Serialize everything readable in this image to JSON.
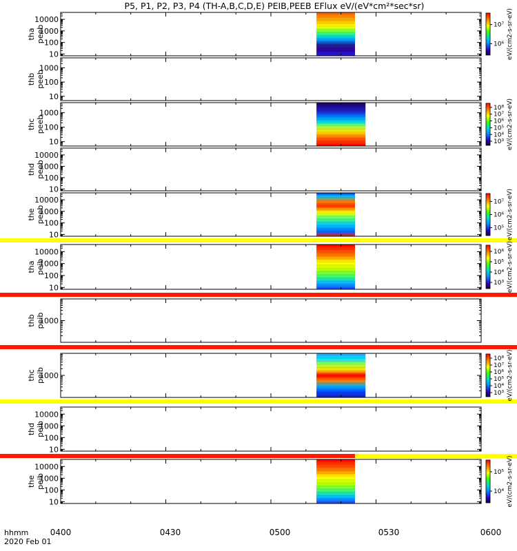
{
  "title": "P5, P1, P2, P3, P4 (TH-A,B,C,D,E) PEIB,PEEB EFlux eV/(eV*cm²*sec*sr)",
  "footer": {
    "time_label": "hhmm",
    "date_label": "2020 Feb 01"
  },
  "chart_data": {
    "type": "heatmap",
    "x_ticks": [
      "0400",
      "0430",
      "0500",
      "0530",
      "0600"
    ],
    "xlim": [
      "04:00",
      "06:00"
    ],
    "y_scale": "log",
    "color_scale": "log",
    "panels": [
      {
        "id": "tha-peeb",
        "ylabel": [
          "tha",
          "peeb"
        ],
        "yticks": [
          "10",
          "100",
          "1000",
          "10000"
        ],
        "ylim": [
          7,
          40000
        ],
        "data_interval": [
          "05:13",
          "05:24"
        ],
        "flag_bar": null,
        "colorbar": {
          "ticks": [
            "10⁶",
            "10⁷"
          ],
          "label": "eV/(cm2-s-sr-eV)"
        }
      },
      {
        "id": "thb-peeb",
        "ylabel": [
          "thb",
          "peeb"
        ],
        "yticks": [
          "10",
          "100",
          "1000"
        ],
        "ylim": [
          5,
          5000
        ],
        "data_interval": null,
        "flag_bar": null,
        "colorbar": null
      },
      {
        "id": "thc-peeb",
        "ylabel": [
          "thc",
          "peeb"
        ],
        "yticks": [
          "10",
          "100",
          "1000"
        ],
        "ylim": [
          5,
          5000
        ],
        "data_interval": [
          "05:13",
          "05:27"
        ],
        "flag_bar": null,
        "colorbar": {
          "ticks": [
            "10³",
            "10⁴",
            "10⁵",
            "10⁶",
            "10⁷",
            "10⁸"
          ],
          "label": "eV/(cm2-s-sr-eV)"
        }
      },
      {
        "id": "thd-peeb",
        "ylabel": [
          "thd",
          "peeb"
        ],
        "yticks": [
          "10",
          "100",
          "1000",
          "10000"
        ],
        "ylim": [
          7,
          40000
        ],
        "data_interval": null,
        "flag_bar": null,
        "colorbar": null
      },
      {
        "id": "the-peeb",
        "ylabel": [
          "the",
          "peeb"
        ],
        "yticks": [
          "10",
          "100",
          "1000",
          "10000"
        ],
        "ylim": [
          7,
          40000
        ],
        "data_interval": [
          "05:13",
          "05:24"
        ],
        "flag_bar": "yellow",
        "colorbar": {
          "ticks": [
            "10⁵",
            "10⁶",
            "10⁷"
          ],
          "label": "eV/(cm2-s-sr-eV)"
        }
      },
      {
        "id": "tha-peib",
        "ylabel": [
          "tha",
          "peib"
        ],
        "yticks": [
          "10",
          "100",
          "1000",
          "10000"
        ],
        "ylim": [
          7,
          40000
        ],
        "data_interval": [
          "05:13",
          "05:24"
        ],
        "flag_bar": "red",
        "colorbar": {
          "ticks": [
            "10³",
            "10⁴",
            "10⁵",
            "10⁶"
          ],
          "label": "eV/(cm2-s-sr-eV)"
        }
      },
      {
        "id": "thb-peib",
        "ylabel": [
          "thb",
          "peib"
        ],
        "yticks": [
          "1000"
        ],
        "ylim": [
          100,
          10000
        ],
        "data_interval": null,
        "flag_bar": "red",
        "colorbar": null
      },
      {
        "id": "thc-peib",
        "ylabel": [
          "thc",
          "peib"
        ],
        "yticks": [
          "1000"
        ],
        "ylim": [
          100,
          10000
        ],
        "data_interval": [
          "05:13",
          "05:27"
        ],
        "flag_bar": "yellow",
        "colorbar": {
          "ticks": [
            "10³",
            "10⁴",
            "10⁵",
            "10⁶",
            "10⁷",
            "10⁸"
          ],
          "label": "eV/(cm2-s-sr-eV)"
        }
      },
      {
        "id": "thd-peib",
        "ylabel": [
          "thd",
          "peib"
        ],
        "yticks": [
          "10",
          "100",
          "1000",
          "10000"
        ],
        "ylim": [
          7,
          40000
        ],
        "data_interval": null,
        "flag_bar": "red+yellow",
        "colorbar": null
      },
      {
        "id": "the-peib",
        "ylabel": [
          "the",
          "peib"
        ],
        "yticks": [
          "10",
          "100",
          "1000",
          "10000"
        ],
        "ylim": [
          7,
          40000
        ],
        "data_interval": [
          "05:13",
          "05:24"
        ],
        "flag_bar": null,
        "colorbar": {
          "ticks": [
            "10⁴",
            "10⁵"
          ],
          "label": "eV/(cm2-s-sr-eV)"
        }
      }
    ]
  },
  "colors": {
    "flag_red": "#ff1a00",
    "flag_yellow": "#ffff00",
    "axis": "#000000"
  }
}
